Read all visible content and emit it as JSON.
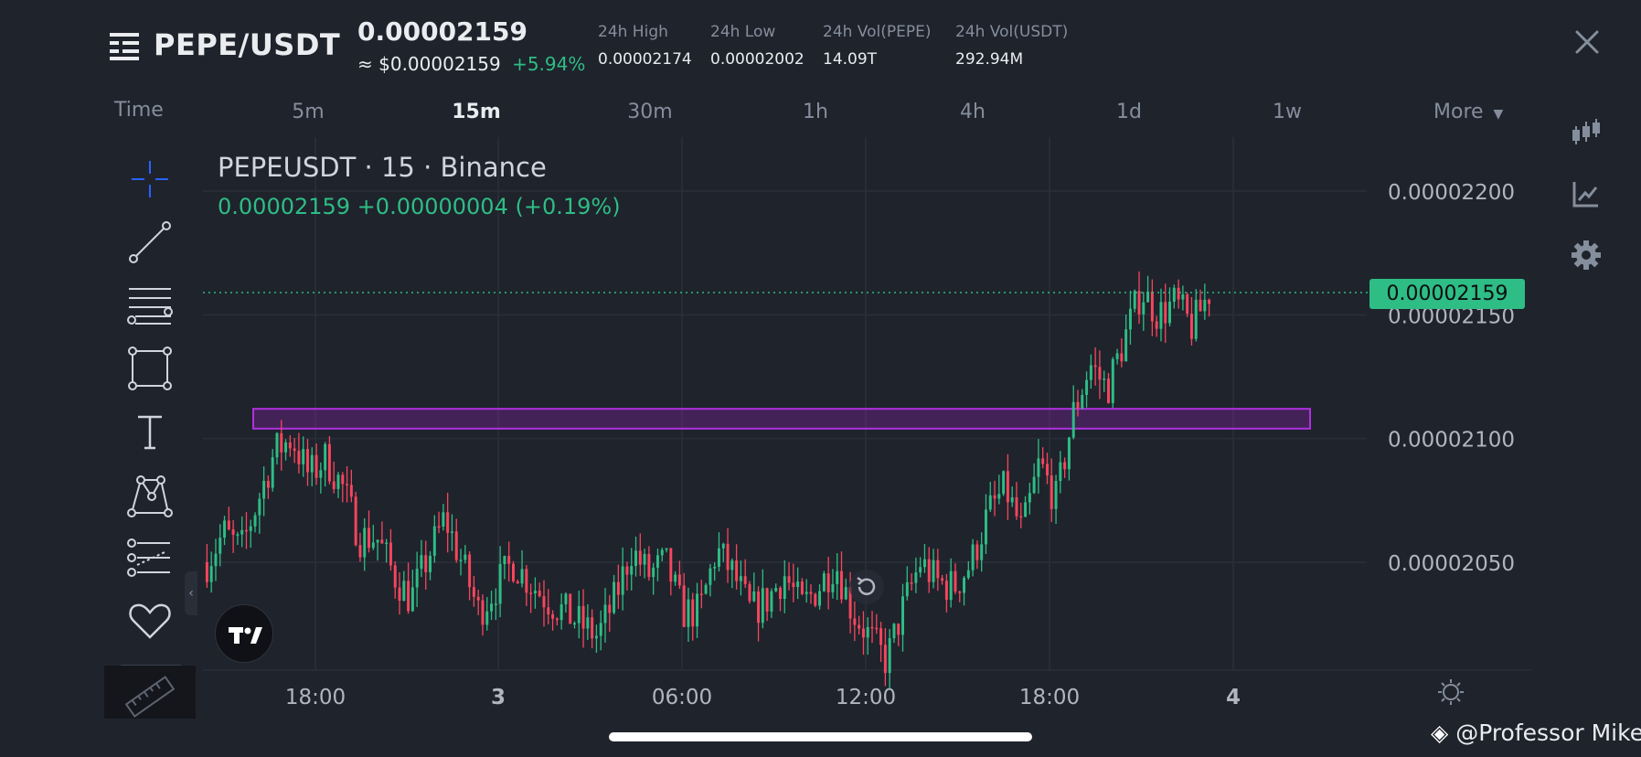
{
  "header": {
    "pair": "PEPE/USDT",
    "last_price": "0.00002159",
    "usd_price": "≈ $0.00002159",
    "change_pct": "+5.94%",
    "stats": [
      {
        "label": "24h High",
        "value": "0.00002174"
      },
      {
        "label": "24h Low",
        "value": "0.00002002"
      },
      {
        "label": "24h Vol(PEPE)",
        "value": "14.09T"
      },
      {
        "label": "24h Vol(USDT)",
        "value": "292.94M"
      }
    ]
  },
  "time_tabs": {
    "label": "Time",
    "items": [
      "5m",
      "15m",
      "30m",
      "1h",
      "4h",
      "1d",
      "1w"
    ],
    "active": "15m",
    "more": "More"
  },
  "chart": {
    "symbol_line": "PEPEUSDT · 15 · Binance",
    "change_line": "0.00002159  +0.00000004 (+0.19%)",
    "current_price_tag": "0.00002159"
  },
  "watermark": "@Professor Mike",
  "colors": {
    "background": "#1f232c",
    "up": "#2ebd85",
    "down": "#f6465d",
    "zone": "#a020c8",
    "accent_blue": "#2962ff"
  },
  "chart_data": {
    "type": "candlestick",
    "title": "PEPEUSDT · 15 · Binance",
    "interval": "15m",
    "ylim": [
      2.01e-05,
      2.22e-05
    ],
    "y_ticks": [
      2.2e-05,
      2.15e-05,
      2.1e-05,
      2.05e-05
    ],
    "y_tick_labels": [
      "0.00002200",
      "0.00002150",
      "0.00002100",
      "0.00002050"
    ],
    "x_tick_labels": [
      "18:00",
      "3",
      "06:00",
      "12:00",
      "18:00",
      "4"
    ],
    "x_tick_bold": [
      false,
      true,
      false,
      false,
      false,
      true
    ],
    "current_price": 2.159e-05,
    "zone": {
      "low": 2.104e-05,
      "high": 2.112e-05,
      "color": "#a020c8"
    },
    "grid": true,
    "close_path": [
      2.05e-05,
      2.062e-05,
      2.055e-05,
      2.075e-05,
      2.095e-05,
      2.1e-05,
      2.085e-05,
      2.092e-05,
      2.08e-05,
      2.06e-05,
      2.06e-05,
      2.045e-05,
      2.035e-05,
      2.052e-05,
      2.068e-05,
      2.05e-05,
      2.03e-05,
      2.04e-05,
      2.05e-05,
      2.042e-05,
      2.035e-05,
      2.03e-05,
      2.025e-05,
      2.02e-05,
      2.035e-05,
      2.055e-05,
      2.045e-05,
      2.05e-05,
      2.03e-05,
      2.03e-05,
      2.055e-05,
      2.045e-05,
      2.03e-05,
      2.035e-05,
      2.045e-05,
      2.032e-05,
      2.04e-05,
      2.05e-05,
      2.03e-05,
      2.02e-05,
      2.01e-05,
      2.032e-05,
      2.05e-05,
      2.042e-05,
      2.04e-05,
      2.05e-05,
      2.07e-05,
      2.08e-05,
      2.062e-05,
      2.09e-05,
      2.075e-05,
      2.11e-05,
      2.13e-05,
      2.12e-05,
      2.14e-05,
      2.16e-05,
      2.15e-05,
      2.155e-05,
      2.145e-05,
      2.159e-05
    ]
  }
}
